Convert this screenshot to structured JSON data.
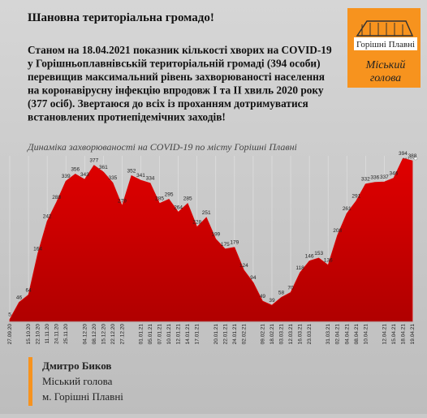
{
  "header": {
    "title": "Шановна територіальна громадо!"
  },
  "body": {
    "lines": [
      "Станом на 18.04.2021 показник кількості хворих на COVID-19",
      "у Горішньоплавнівській територіальній громаді (394 особи)",
      "перевищив максимальний рівень захворюваності населення",
      "на коронавірусну інфекцію впродовж І та ІІ хвиль 2020 року",
      "(377 осіб). Звертаюся до всіх із проханням дотримуватися",
      "встановлених протиепідемічних заходів!"
    ]
  },
  "logo": {
    "city": "Горішні Плавні",
    "role": "Міський голова"
  },
  "chart_data": {
    "type": "area",
    "title": "Динаміка захворюваності на COVID-19 по місту Горішні Плавні",
    "categories": [
      "27.09.20",
      null,
      "15.10.20",
      "22.10.20",
      "11.11.20",
      "24.11.20",
      "25.11.20",
      null,
      "04.12.20",
      "08.12.20",
      "15.12.20",
      "22.12.20",
      "27.12.20",
      null,
      "01.01.21",
      "05.01.21",
      "07.01.21",
      "10.01.21",
      "12.01.21",
      "14.01.21",
      "17.01.21",
      null,
      "20.01.21",
      "22.01.21",
      "24.01.21",
      "02.02.21",
      null,
      "09.02.21",
      "18.02.21",
      "03.03.21",
      "12.03.21",
      "16.03.21",
      "23.03.21",
      null,
      "31.03.21",
      "02.04.21",
      "04.04.21",
      "08.04.21",
      "10.04.21",
      null,
      "12.04.21",
      "15.04.21",
      "18.04.21",
      "19.04.21"
    ],
    "values": [
      5,
      46,
      64,
      164,
      242,
      288,
      339,
      356,
      343,
      377,
      361,
      335,
      279,
      352,
      341,
      334,
      285,
      295,
      264,
      285,
      228,
      251,
      199,
      175,
      179,
      124,
      94,
      49,
      39,
      58,
      70,
      118,
      146,
      153,
      136,
      208,
      261,
      291,
      332,
      336,
      337,
      346,
      394,
      388
    ],
    "color": "#d90000",
    "ylim": [
      0,
      400
    ]
  },
  "footer": {
    "name": "Дмитро Биков",
    "role": "Міський голова",
    "city": "м. Горішні Плавні"
  }
}
